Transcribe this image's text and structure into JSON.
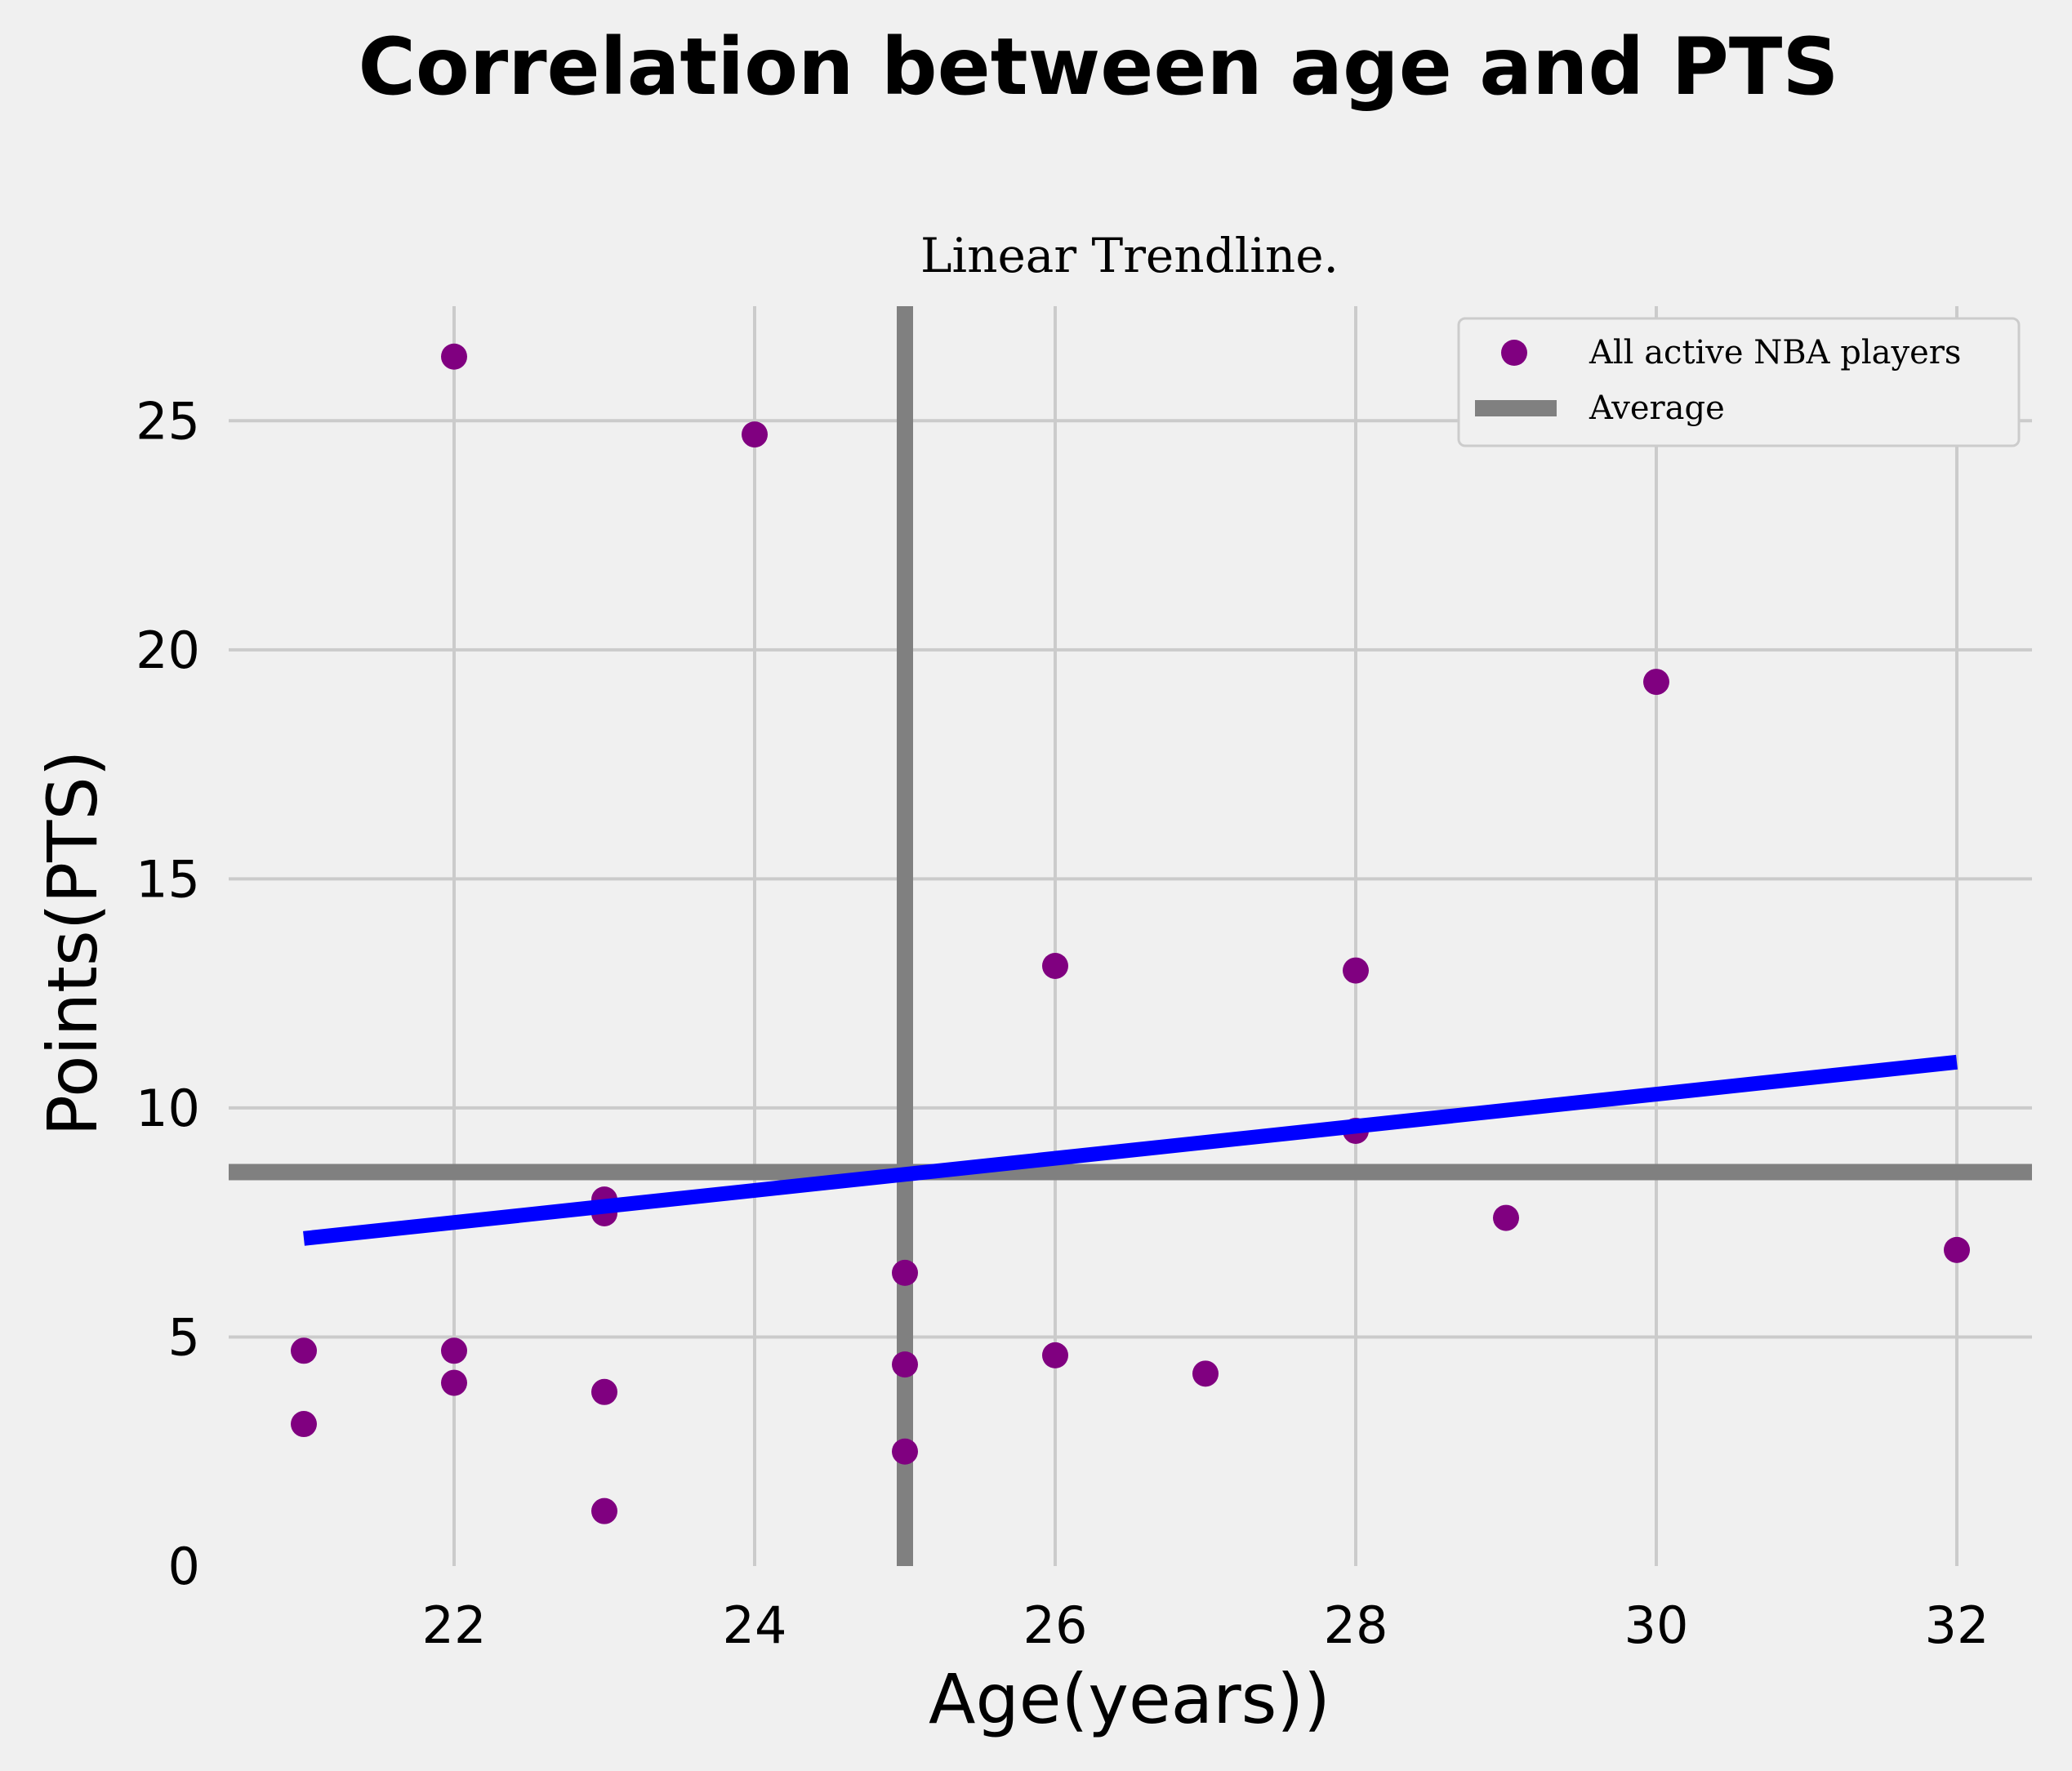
{
  "chart_data": {
    "type": "scatter",
    "title": "Correlation between age and PTS",
    "subtitle": "Linear Trendline.",
    "xlabel": "Age(years))",
    "ylabel": "Points(PTS)",
    "xlim": [
      20.5,
      32.5
    ],
    "ylim": [
      0,
      27.5
    ],
    "xticks": [
      22,
      24,
      26,
      28,
      30,
      32
    ],
    "yticks": [
      0,
      5,
      10,
      15,
      20,
      25
    ],
    "grid": true,
    "legend_position": "top-right",
    "series": [
      {
        "name": "All active NBA players",
        "color": "#800080",
        "points": [
          [
            21,
            4.7
          ],
          [
            21,
            3.1
          ],
          [
            22,
            26.4
          ],
          [
            22,
            4.7
          ],
          [
            22,
            4.0
          ],
          [
            23,
            8.0
          ],
          [
            23,
            7.7
          ],
          [
            23,
            3.8
          ],
          [
            23,
            1.2
          ],
          [
            24,
            24.7
          ],
          [
            25,
            6.4
          ],
          [
            25,
            4.4
          ],
          [
            25,
            2.5
          ],
          [
            26,
            13.1
          ],
          [
            26,
            4.6
          ],
          [
            27,
            4.2
          ],
          [
            28,
            13.0
          ],
          [
            28,
            9.5
          ],
          [
            29,
            7.6
          ],
          [
            30,
            19.3
          ],
          [
            32,
            6.9
          ]
        ]
      }
    ],
    "trendline": {
      "color": "#0000ff",
      "x": [
        21,
        32
      ],
      "y": [
        7.15,
        11.0
      ]
    },
    "average": {
      "name": "Average",
      "color": "#808080",
      "x": 25.0,
      "y": 8.6
    }
  }
}
